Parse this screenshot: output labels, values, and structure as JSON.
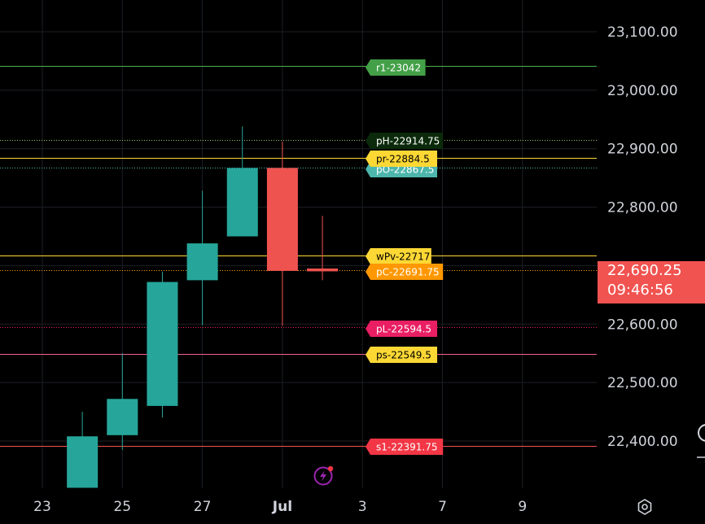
{
  "chart_data": {
    "type": "candlestick",
    "y_ticks": [
      "23,100.00",
      "23,000.00",
      "22,900.00",
      "22,800.00",
      "22,600.00",
      "22,500.00",
      "22,400.00"
    ],
    "y_tick_values": [
      23100,
      23000,
      22900,
      22800,
      22600,
      22500,
      22400
    ],
    "ylim": [
      22320,
      23155
    ],
    "x_ticks": [
      {
        "label": "23",
        "pos": 0,
        "bold": false
      },
      {
        "label": "25",
        "pos": 2,
        "bold": false
      },
      {
        "label": "27",
        "pos": 4,
        "bold": false
      },
      {
        "label": "Jul",
        "pos": 6,
        "bold": true
      },
      {
        "label": "3",
        "pos": 8,
        "bold": false
      },
      {
        "label": "7",
        "pos": 10,
        "bold": false
      },
      {
        "label": "9",
        "pos": 12,
        "bold": false
      }
    ],
    "candles": [
      {
        "pos": 1,
        "open": 22320,
        "high": 22450,
        "low": 22320,
        "close": 22408
      },
      {
        "pos": 2,
        "open": 22410,
        "high": 22550,
        "low": 22385,
        "close": 22472
      },
      {
        "pos": 3,
        "open": 22460,
        "high": 22690,
        "low": 22440,
        "close": 22672
      },
      {
        "pos": 4,
        "open": 22675,
        "high": 22828,
        "low": 22598,
        "close": 22738
      },
      {
        "pos": 5,
        "open": 22750,
        "high": 22938,
        "low": 22750,
        "close": 22867
      },
      {
        "pos": 6,
        "open": 22867,
        "high": 22912,
        "low": 22597,
        "close": 22691
      },
      {
        "pos": 7,
        "open": 22695,
        "high": 22785,
        "low": 22675,
        "close": 22690.25
      }
    ],
    "levels": [
      {
        "label": "r1-23042",
        "value": 23042,
        "line": "#4caf50",
        "bg": "#43a047",
        "fg": "#ffffff",
        "dash": false
      },
      {
        "label": "pH-22914.75",
        "value": 22914.75,
        "line": "#9ccc65",
        "bg": "#0b2a0b",
        "fg": "#ffffff",
        "dash": true
      },
      {
        "label": "pO-22867.5",
        "value": 22867.5,
        "line": "#4db6ac",
        "bg": "#4db6ac",
        "fg": "#ffffff",
        "dash": true
      },
      {
        "label": "pr-22884.5",
        "value": 22884.5,
        "line": "#fdd835",
        "bg": "#fdd835",
        "fg": "#000000",
        "dash": false
      },
      {
        "label": "wPv-22717",
        "value": 22717,
        "line": "#fdd835",
        "bg": "#fdd835",
        "fg": "#000000",
        "dash": false
      },
      {
        "label": "pC-22691.75",
        "value": 22691.75,
        "line": "#ff9800",
        "bg": "#ff9800",
        "fg": "#ffffff",
        "dash": true
      },
      {
        "label": "pL-22594.5",
        "value": 22594.5,
        "line": "#e91e63",
        "bg": "#e91e63",
        "fg": "#ffffff",
        "dash": true
      },
      {
        "label": "ps-22549.5",
        "value": 22549.5,
        "line": "#f06292",
        "bg": "#fdd835",
        "fg": "#000000",
        "dash": false
      },
      {
        "label": "s1-22391.75",
        "value": 22391.75,
        "line": "#ef5350",
        "bg": "#f23645",
        "fg": "#ffffff",
        "dash": false
      }
    ],
    "colors": {
      "up": "#26a69a",
      "down": "#ef5350"
    },
    "grid": true
  },
  "price_badge": {
    "price": "22,690.25",
    "countdown": "09:46:56"
  },
  "icons": {
    "settings": "gear-icon",
    "bolt": "lightning-icon"
  }
}
